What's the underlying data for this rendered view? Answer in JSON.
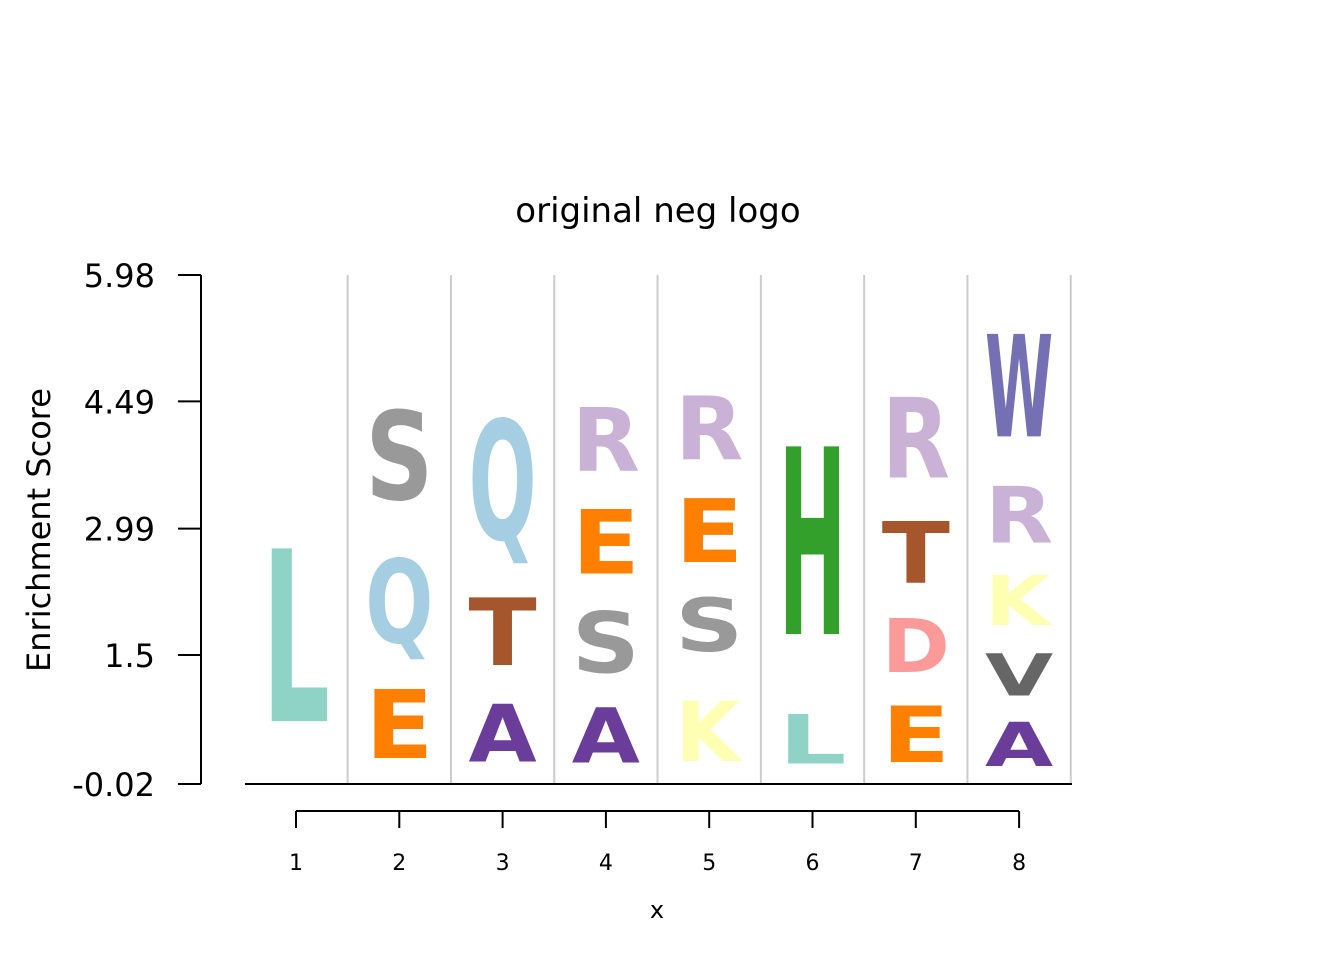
{
  "chart_data": {
    "type": "sequence-logo",
    "title": "original neg logo",
    "xlabel": "x",
    "ylabel": "Enrichment Score",
    "y_ticks": [
      "5.98",
      "4.49",
      "2.99",
      "1.5",
      "-0.02"
    ],
    "ylim": [
      -0.02,
      5.98
    ],
    "positions": [
      "1",
      "2",
      "3",
      "4",
      "5",
      "6",
      "7",
      "8"
    ],
    "grid": true,
    "stacks": [
      {
        "position": "1",
        "letters": [
          {
            "letter": "L",
            "from": 0.05,
            "to": 3.32,
            "color": "#8fd3c7"
          }
        ]
      },
      {
        "position": "2",
        "letters": [
          {
            "letter": "E",
            "from": 0.02,
            "to": 1.32,
            "color": "#ff7f00"
          },
          {
            "letter": "Q",
            "from": 1.32,
            "to": 2.91,
            "color": "#a6cee3"
          },
          {
            "letter": "S",
            "from": 2.99,
            "to": 4.67,
            "color": "#999999"
          }
        ]
      },
      {
        "position": "3",
        "letters": [
          {
            "letter": "A",
            "from": 0.02,
            "to": 1.12,
            "color": "#6a3d9a"
          },
          {
            "letter": "T",
            "from": 1.12,
            "to": 2.4,
            "color": "#a6562c"
          },
          {
            "letter": "Q",
            "from": 2.4,
            "to": 4.67,
            "color": "#a6cee3"
          }
        ]
      },
      {
        "position": "4",
        "letters": [
          {
            "letter": "A",
            "from": 0.02,
            "to": 1.06,
            "color": "#6a3d9a"
          },
          {
            "letter": "S",
            "from": 1.06,
            "to": 2.21,
            "color": "#999999"
          },
          {
            "letter": "E",
            "from": 2.21,
            "to": 3.43,
            "color": "#ff7f00"
          },
          {
            "letter": "R",
            "from": 3.43,
            "to": 4.63,
            "color": "#cab2d6"
          }
        ]
      },
      {
        "position": "5",
        "letters": [
          {
            "letter": "K",
            "from": 0.02,
            "to": 1.16,
            "color": "#ffffb3"
          },
          {
            "letter": "S",
            "from": 1.34,
            "to": 2.35,
            "color": "#999999"
          },
          {
            "letter": "E",
            "from": 2.35,
            "to": 3.56,
            "color": "#ff7f00"
          },
          {
            "letter": "R",
            "from": 3.56,
            "to": 4.77,
            "color": "#cab2d6"
          }
        ]
      },
      {
        "position": "6",
        "letters": [
          {
            "letter": "L",
            "from": 0.03,
            "to": 0.97,
            "color": "#8fd3c7"
          },
          {
            "letter": "H",
            "from": 1.02,
            "to": 4.57,
            "color": "#33a02c"
          }
        ]
      },
      {
        "position": "7",
        "letters": [
          {
            "letter": "E",
            "from": 0.02,
            "to": 1.09,
            "color": "#ff7f00"
          },
          {
            "letter": "D",
            "from": 1.09,
            "to": 2.11,
            "color": "#fb9a99"
          },
          {
            "letter": "T",
            "from": 2.11,
            "to": 3.28,
            "color": "#a6562c"
          },
          {
            "letter": "R",
            "from": 3.28,
            "to": 4.8,
            "color": "#cab2d6"
          }
        ]
      },
      {
        "position": "8",
        "letters": [
          {
            "letter": "A",
            "from": 0.02,
            "to": 0.86,
            "color": "#6a3d9a"
          },
          {
            "letter": "V",
            "from": 0.86,
            "to": 1.66,
            "color": "#666666"
          },
          {
            "letter": "K",
            "from": 1.66,
            "to": 2.61,
            "color": "#ffffb3"
          },
          {
            "letter": "R",
            "from": 2.61,
            "to": 3.68,
            "color": "#cab2d6"
          },
          {
            "letter": "W",
            "from": 3.68,
            "to": 5.62,
            "color": "#7570b3"
          }
        ]
      }
    ]
  }
}
